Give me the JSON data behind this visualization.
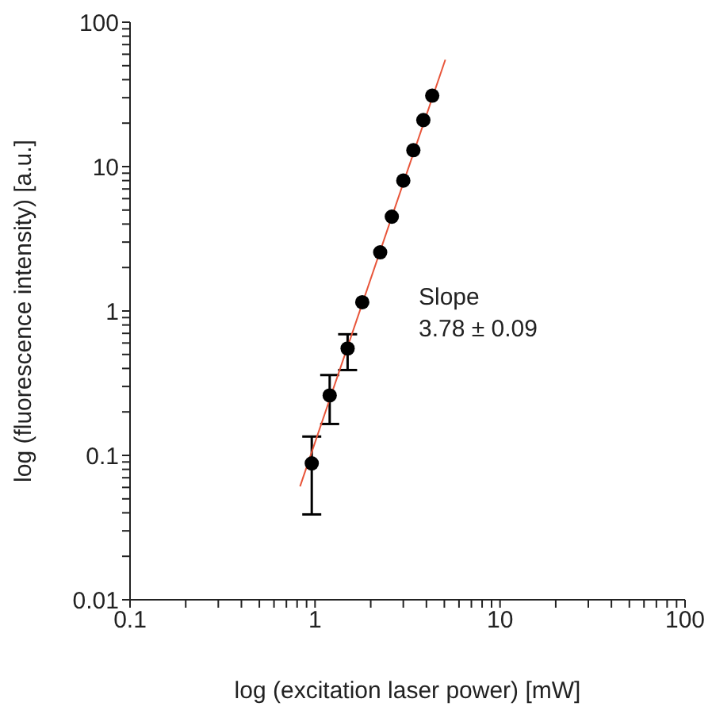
{
  "chart_data": {
    "type": "scatter",
    "xlabel": "log (excitation laser power) [mW]",
    "ylabel": "log (fluorescence intensity) [a.u.]",
    "log": "xy",
    "xlim": [
      0.1,
      100
    ],
    "ylim": [
      0.01,
      100
    ],
    "xticks": [
      0.1,
      {
        "value": 0.2,
        "label": null
      },
      {
        "value": 0.3,
        "label": null
      },
      {
        "value": 0.4,
        "label": null
      },
      {
        "value": 0.5,
        "label": null
      },
      {
        "value": 0.6,
        "label": null
      },
      {
        "value": 0.7,
        "label": null
      },
      {
        "value": 0.8,
        "label": null
      },
      {
        "value": 0.9,
        "label": null
      },
      1,
      {
        "value": 2,
        "label": null
      },
      {
        "value": 3,
        "label": null
      },
      {
        "value": 4,
        "label": null
      },
      {
        "value": 5,
        "label": null
      },
      {
        "value": 6,
        "label": null
      },
      {
        "value": 7,
        "label": null
      },
      {
        "value": 8,
        "label": null
      },
      {
        "value": 9,
        "label": null
      },
      10,
      {
        "value": 20,
        "label": null
      },
      {
        "value": 30,
        "label": null
      },
      {
        "value": 40,
        "label": null
      },
      {
        "value": 50,
        "label": null
      },
      {
        "value": 60,
        "label": null
      },
      {
        "value": 70,
        "label": null
      },
      {
        "value": 80,
        "label": null
      },
      {
        "value": 90,
        "label": null
      },
      100
    ],
    "yticks": [
      0.01,
      {
        "value": 0.02,
        "label": null
      },
      {
        "value": 0.03,
        "label": null
      },
      {
        "value": 0.04,
        "label": null
      },
      {
        "value": 0.05,
        "label": null
      },
      {
        "value": 0.06,
        "label": null
      },
      {
        "value": 0.07,
        "label": null
      },
      {
        "value": 0.08,
        "label": null
      },
      {
        "value": 0.09,
        "label": null
      },
      0.1,
      {
        "value": 0.2,
        "label": null
      },
      {
        "value": 0.3,
        "label": null
      },
      {
        "value": 0.4,
        "label": null
      },
      {
        "value": 0.5,
        "label": null
      },
      {
        "value": 0.6,
        "label": null
      },
      {
        "value": 0.7,
        "label": null
      },
      {
        "value": 0.8,
        "label": null
      },
      {
        "value": 0.9,
        "label": null
      },
      1,
      {
        "value": 2,
        "label": null
      },
      {
        "value": 3,
        "label": null
      },
      {
        "value": 4,
        "label": null
      },
      {
        "value": 5,
        "label": null
      },
      {
        "value": 6,
        "label": null
      },
      {
        "value": 7,
        "label": null
      },
      {
        "value": 8,
        "label": null
      },
      {
        "value": 9,
        "label": null
      },
      10,
      {
        "value": 20,
        "label": null
      },
      {
        "value": 30,
        "label": null
      },
      {
        "value": 40,
        "label": null
      },
      {
        "value": 50,
        "label": null
      },
      {
        "value": 60,
        "label": null
      },
      {
        "value": 70,
        "label": null
      },
      {
        "value": 80,
        "label": null
      },
      {
        "value": 90,
        "label": null
      },
      100
    ],
    "annotations": [
      "Slope\n3.78 ± 0.09"
    ],
    "series": [
      {
        "marker": "circle",
        "color": "#000000",
        "x": [
          0.96,
          1.2,
          1.5,
          1.8,
          2.25,
          2.6,
          3.0,
          3.4,
          3.85,
          4.3
        ],
        "values": [
          0.088,
          0.26,
          0.55,
          1.15,
          2.55,
          4.5,
          8.0,
          13,
          21,
          31
        ],
        "errors": [
          [
            0.039,
            0.135
          ],
          [
            0.165,
            0.36
          ],
          [
            0.39,
            0.69
          ],
          null,
          null,
          null,
          null,
          null,
          null,
          null
        ]
      },
      {
        "type": "line",
        "marker": "none",
        "color": "#e8553a",
        "x": [
          0.83,
          5.06
        ],
        "values": [
          0.061,
          55
        ]
      }
    ]
  }
}
